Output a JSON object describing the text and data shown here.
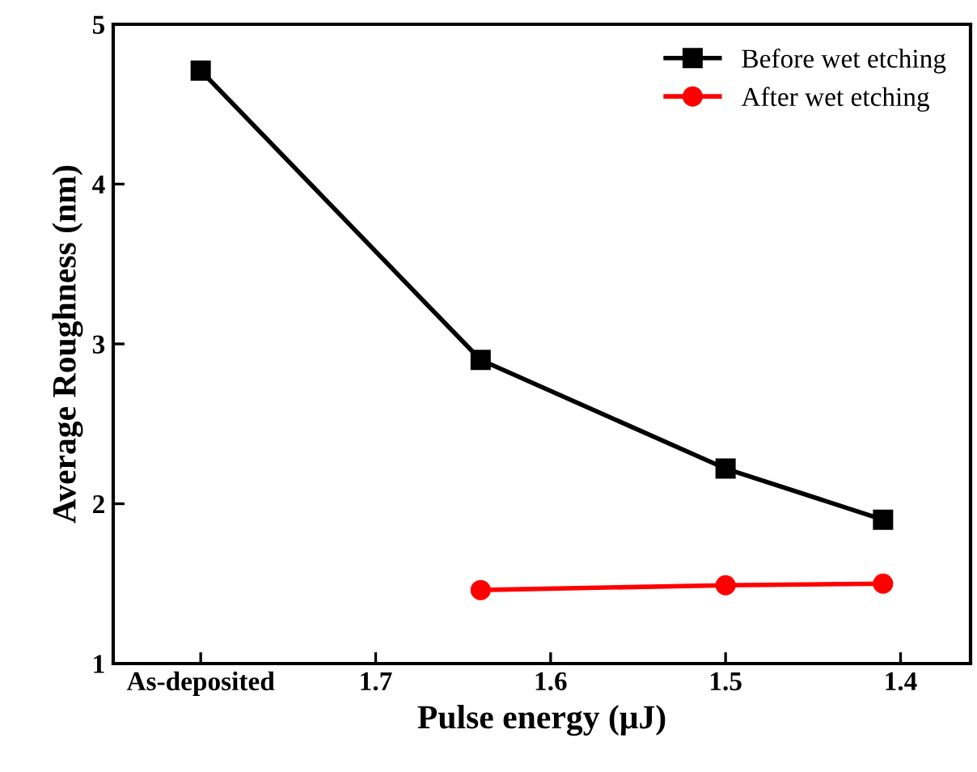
{
  "chart_data": {
    "type": "line",
    "xlabel": "Pulse energy (μJ)",
    "ylabel": "Average Roughness (nm)",
    "xlim": [
      1.85,
      1.36
    ],
    "xticks": [
      {
        "value": 1.8,
        "label": "As-deposited"
      },
      1.7,
      1.6,
      1.5,
      1.4
    ],
    "ylim": [
      1,
      5
    ],
    "yticks": [
      1,
      2,
      3,
      4,
      5
    ],
    "series": [
      {
        "name": "Before wet etching",
        "color": "#000000",
        "marker": "square",
        "x": [
          1.8,
          1.64,
          1.5,
          1.41
        ],
        "values": [
          4.71,
          2.9,
          2.22,
          1.9
        ]
      },
      {
        "name": "After wet etching",
        "color": "#ff0000",
        "marker": "circle",
        "x": [
          1.64,
          1.5,
          1.41
        ],
        "values": [
          1.46,
          1.49,
          1.5
        ]
      }
    ],
    "legend": "top right",
    "grid": false,
    "line_style": "solid"
  }
}
